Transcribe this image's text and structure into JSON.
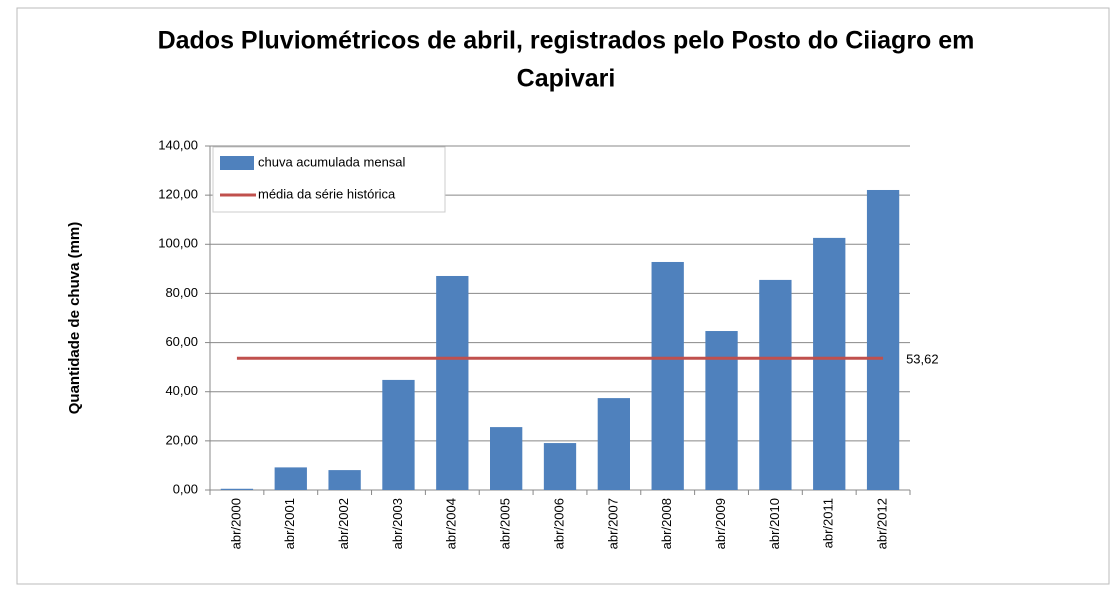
{
  "chart_data": {
    "type": "bar",
    "title": [
      "Dados Pluviométricos de abril, registrados pelo Posto do Ciiagro em",
      "Capivari"
    ],
    "y_label": "Quantidade de chuva (mm)",
    "categories": [
      "abr/2000",
      "abr/2001",
      "abr/2002",
      "abr/2003",
      "abr/2004",
      "abr/2005",
      "abr/2006",
      "abr/2007",
      "abr/2008",
      "abr/2009",
      "abr/2010",
      "abr/2011",
      "abr/2012"
    ],
    "series": [
      {
        "name": "chuva acumulada mensal",
        "type": "bar",
        "color": "#4f81bd",
        "values": [
          0.5,
          9.2,
          8.1,
          44.8,
          87.1,
          25.6,
          19.1,
          37.4,
          92.8,
          64.7,
          85.5,
          102.6,
          122.1
        ]
      },
      {
        "name": "média da série histórica",
        "type": "line",
        "color": "#c0504d",
        "values": [
          53.62,
          53.62,
          53.62,
          53.62,
          53.62,
          53.62,
          53.62,
          53.62,
          53.62,
          53.62,
          53.62,
          53.62,
          53.62
        ],
        "value_labels": [
          null,
          null,
          null,
          null,
          null,
          null,
          null,
          null,
          null,
          null,
          null,
          null,
          "53,62"
        ]
      }
    ],
    "ylim": [
      0,
      140
    ],
    "yticks": [
      {
        "value": 0,
        "label": "0,00"
      },
      {
        "value": 20,
        "label": "20,00"
      },
      {
        "value": 40,
        "label": "40,00"
      },
      {
        "value": 60,
        "label": "60,00"
      },
      {
        "value": 80,
        "label": "80,00"
      },
      {
        "value": 100,
        "label": "100,00"
      },
      {
        "value": 120,
        "label": "120,00"
      },
      {
        "value": 140,
        "label": "140,00"
      }
    ],
    "grid": true,
    "legend": "top-left"
  }
}
